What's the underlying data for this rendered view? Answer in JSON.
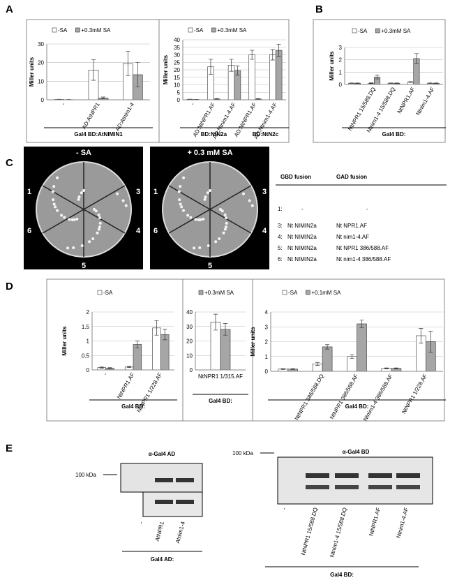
{
  "panels": [
    "A",
    "B",
    "C",
    "D",
    "E"
  ],
  "chart_data": [
    {
      "type": "bar",
      "ylabel": "Miller units",
      "ylim": [
        0,
        30
      ],
      "yticks": [
        0,
        10,
        20,
        30
      ],
      "grid": true,
      "categories": [
        "-",
        "AD:AtNPR1",
        "AD:Atnim1-4"
      ],
      "series": [
        {
          "name": "-SA",
          "color": "#ffffff",
          "values": [
            0.2,
            16,
            19.5
          ],
          "errors": [
            0.1,
            5.5,
            6.5
          ]
        },
        {
          "name": "+0.3mM SA",
          "color": "#a6a6a6",
          "values": [
            0.1,
            1,
            13.5
          ],
          "errors": [
            0.1,
            0.5,
            6.5
          ]
        }
      ],
      "groups": [
        "Gal4 BD:AtNIMIN1"
      ]
    },
    {
      "type": "bar",
      "ylabel": "Miller units",
      "ylim": [
        0,
        40
      ],
      "yticks": [
        0,
        5,
        10,
        15,
        20,
        25,
        30,
        35,
        40
      ],
      "grid": true,
      "categories": [
        "-",
        "AD:NtNPR1.AF",
        "AD:Ntnim1-4.AF",
        "AD:NtNPR1.AF",
        "AD:Ntnim1-4.AF"
      ],
      "series": [
        {
          "name": "-SA",
          "color": "#ffffff",
          "values": [
            0.3,
            22,
            23,
            30,
            30
          ],
          "errors": [
            0.1,
            5,
            4,
            3,
            3.5
          ]
        },
        {
          "name": "+0.3mM SA",
          "color": "#a6a6a6",
          "values": [
            0.2,
            0.5,
            19.5,
            0.5,
            33
          ],
          "errors": [
            0.1,
            0.3,
            3,
            0.3,
            4
          ]
        }
      ],
      "groups": [
        "BD:NtN2a",
        "BD:NtN2c"
      ]
    },
    {
      "type": "bar",
      "ylabel": "Miller units",
      "ylim": [
        0,
        3
      ],
      "yticks": [
        0,
        1,
        2,
        3
      ],
      "grid": true,
      "categories": [
        null,
        "NtNPR1 15/588.DQ",
        "Ntnim1-4 15/588.DQ",
        "NtNPR1.AF",
        "Ntnim1-4.AF"
      ],
      "series": [
        {
          "name": "-SA",
          "color": "#ffffff",
          "values": [
            0.1,
            0.1,
            0.1,
            0.2,
            0.1
          ],
          "errors": [
            0.02,
            0.03,
            0.02,
            0.03,
            0.02
          ]
        },
        {
          "name": "+0.3mM SA",
          "color": "#a6a6a6",
          "values": [
            0.1,
            0.6,
            0.1,
            2.1,
            0.1
          ],
          "errors": [
            0.02,
            0.15,
            0.02,
            0.4,
            0.02
          ]
        }
      ],
      "groups": [
        "Gal4 BD:"
      ]
    },
    {
      "type": "bar",
      "ylabel": "Miller units",
      "ylim": [
        0,
        2
      ],
      "yticks": [
        0,
        0.5,
        1,
        1.5,
        2
      ],
      "grid": true,
      "categories": [
        "-",
        "NtNPR1.AF",
        "NtNPR1 1/228.AF"
      ],
      "series": [
        {
          "name": "-SA",
          "color": "#ffffff",
          "values": [
            0.08,
            0.1,
            1.45
          ],
          "errors": [
            0.02,
            0.02,
            0.25
          ]
        },
        {
          "color": "#a6a6a6",
          "values": [
            0.06,
            0.88,
            1.22
          ],
          "errors": [
            0.02,
            0.12,
            0.18
          ]
        }
      ],
      "groups": [
        "Gal4 BD:"
      ]
    },
    {
      "type": "bar",
      "ylim": [
        0,
        40
      ],
      "yticks": [
        0,
        10,
        20,
        30,
        40
      ],
      "grid": true,
      "categories": [
        "NtNPR1 1/315.AF"
      ],
      "series": [
        {
          "color": "#ffffff",
          "values": [
            33
          ],
          "errors": [
            5.5
          ]
        },
        {
          "name": "+0.3mM SA",
          "color": "#a6a6a6",
          "values": [
            28
          ],
          "errors": [
            4
          ]
        }
      ],
      "groups": [
        "Gal4 BD:"
      ]
    },
    {
      "type": "bar",
      "ylabel": "Miller units",
      "ylim": [
        0,
        4
      ],
      "yticks": [
        0,
        1,
        2,
        3,
        4
      ],
      "grid": true,
      "categories": [
        null,
        "NtNPR1 386/588.DQ",
        "NtNPR1 386/588.AF",
        "Ntnim1-4 386/588.AF",
        "NtNPR1 1/228.AF"
      ],
      "series": [
        {
          "name": "-SA",
          "color": "#ffffff",
          "values": [
            0.15,
            0.5,
            1.0,
            0.2,
            2.4
          ],
          "errors": [
            0.03,
            0.1,
            0.12,
            0.03,
            0.5
          ]
        },
        {
          "name": "+0.1mM SA",
          "color": "#a6a6a6",
          "values": [
            0.15,
            1.65,
            3.2,
            0.2,
            2.0
          ],
          "errors": [
            0.03,
            0.15,
            0.25,
            0.03,
            0.7
          ]
        }
      ],
      "groups": [
        "Gal4 BD:"
      ]
    }
  ],
  "plates": [
    {
      "title": "- SA",
      "sectors": [
        "1",
        "3",
        "4",
        "5",
        "6"
      ]
    },
    {
      "title": "+ 0.3 mM SA",
      "sectors": [
        "1",
        "3",
        "4",
        "5",
        "6"
      ]
    }
  ],
  "table": {
    "header": [
      "GBD fusion",
      "GAD fusion"
    ],
    "rows": [
      [
        "1:",
        "-",
        "-"
      ],
      [
        "3:",
        "Nt NIMIN2a",
        "Nt NPR1.AF"
      ],
      [
        "4:",
        "Nt NIMIN2a",
        "Nt nim1-4.AF"
      ],
      [
        "5:",
        "Nt NIMIN2a",
        "Nt NPR1 386/588.AF"
      ],
      [
        "6:",
        "Nt NIMIN2a",
        "Nt nim1-4 386/588.AF"
      ]
    ]
  },
  "blots": [
    {
      "title": "α-Gal4 AD",
      "marker": "100 kDa",
      "lanes": [
        "-",
        "AtNPR1",
        "Atnim1-4"
      ],
      "group": "Gal4 AD:"
    },
    {
      "title": "α-Gal4 BD",
      "marker": "100 kDa",
      "lanes": [
        "-",
        "NtNPR1 15/588.DQ",
        "Ntnim1-4 15/588.DQ",
        "NtNPR1.AF",
        "Ntnim1-4.AF"
      ],
      "group": "Gal4 BD:"
    }
  ]
}
